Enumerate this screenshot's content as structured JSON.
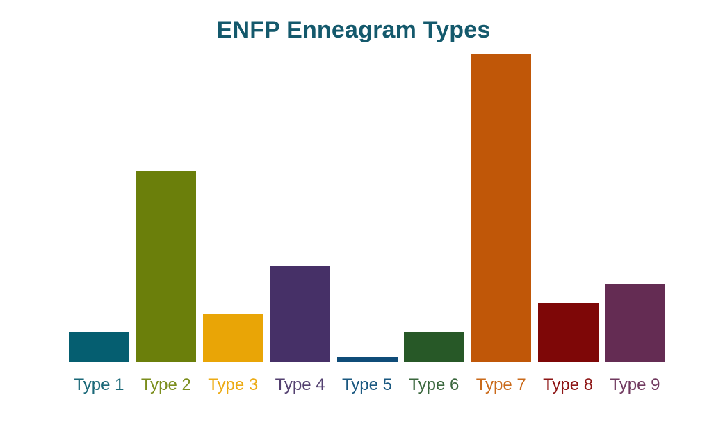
{
  "title": "ENFP Enneagram Types",
  "title_color": "#14596c",
  "background_color": "#ffffff",
  "chart_data": {
    "type": "bar",
    "title": "ENFP Enneagram Types",
    "xlabel": "",
    "ylabel": "",
    "grid": false,
    "legend": false,
    "y_axis_shown": false,
    "ylim": [
      0,
      100
    ],
    "categories": [
      "Type 1",
      "Type 2",
      "Type 3",
      "Type 4",
      "Type 5",
      "Type 6",
      "Type 7",
      "Type 8",
      "Type 9"
    ],
    "values": [
      9.7,
      62.0,
      15.6,
      31.2,
      1.6,
      9.7,
      100.0,
      19.2,
      25.6
    ],
    "values_note": "relative bar heights, percent of tallest bar (no numeric axis visible)",
    "bar_colors": [
      "#055e70",
      "#6b7f0b",
      "#e9a506",
      "#463067",
      "#0f4c78",
      "#275827",
      "#c05708",
      "#7e0707",
      "#642c53"
    ],
    "label_colors": [
      "#1a6878",
      "#7b8e1d",
      "#ecab15",
      "#534070",
      "#1a5880",
      "#3a673d",
      "#ca6a1a",
      "#8e1616",
      "#70395f"
    ]
  }
}
